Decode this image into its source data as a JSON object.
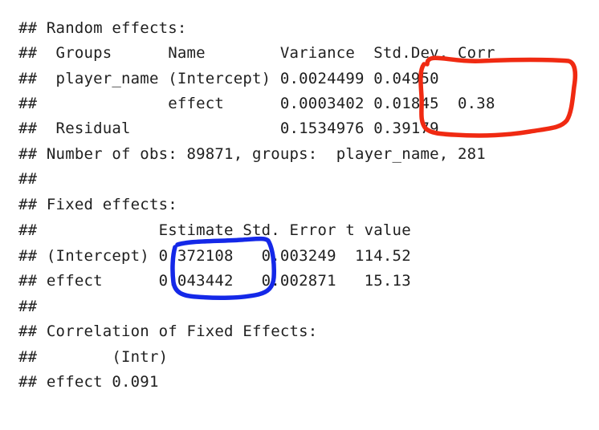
{
  "console": {
    "lines": [
      "## Random effects:",
      "##  Groups      Name        Variance  Std.Dev. Corr",
      "##  player_name (Intercept) 0.0024499 0.04950",
      "##              effect      0.0003402 0.01845  0.38",
      "##  Residual                0.1534976 0.39179",
      "## Number of obs: 89871, groups:  player_name, 281",
      "##",
      "## Fixed effects:",
      "##             Estimate Std. Error t value",
      "## (Intercept) 0.372108   0.003249  114.52",
      "## effect      0.043442   0.002871   15.13",
      "##",
      "## Correlation of Fixed Effects:",
      "##        (Intr)",
      "## effect 0.091"
    ]
  },
  "annotations": {
    "red_circle_color": "#f02a12",
    "blue_circle_color": "#1428e8"
  }
}
